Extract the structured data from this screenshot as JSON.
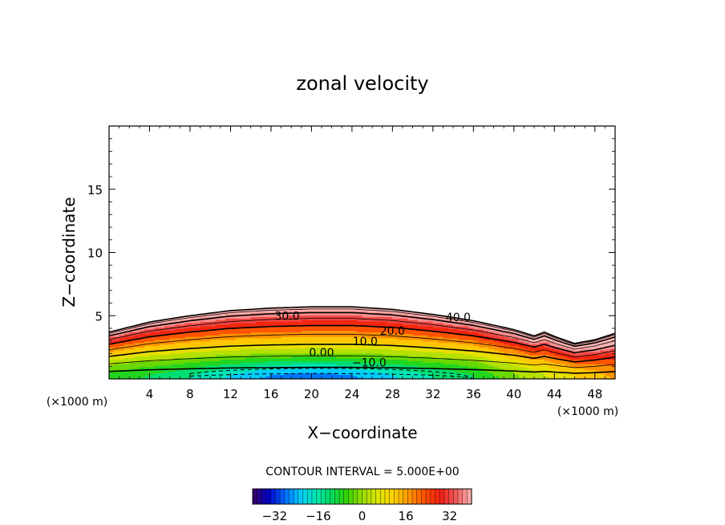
{
  "chart_data": {
    "type": "heatmap",
    "title": "zonal velocity",
    "xlabel": "X−coordinate",
    "ylabel": "Z−coordinate",
    "x_unit_left": "(×1000 m)",
    "x_unit_right": "(×1000 m)",
    "xlim": [
      0,
      50
    ],
    "ylim": [
      0,
      20
    ],
    "x_ticks": [
      4,
      8,
      12,
      16,
      20,
      24,
      28,
      32,
      36,
      40,
      44,
      48
    ],
    "x_tick_labels": [
      "4",
      "8",
      "12",
      "16",
      "20",
      "24",
      "28",
      "32",
      "36",
      "40",
      "44",
      "48"
    ],
    "y_ticks": [
      5,
      10,
      15
    ],
    "y_tick_labels": [
      "5",
      "10",
      "15"
    ],
    "contour_labels": [
      {
        "text": "30.0",
        "x": 17.6,
        "y": 5.0
      },
      {
        "text": "40.0",
        "x": 34.5,
        "y": 4.9
      },
      {
        "text": "20.0",
        "x": 28.0,
        "y": 3.8
      },
      {
        "text": "10.0",
        "x": 25.3,
        "y": 3.0
      },
      {
        "text": "0.00",
        "x": 21.0,
        "y": 2.1
      },
      {
        "text": "−10.0",
        "x": 25.7,
        "y": 1.3
      }
    ],
    "contour_interval_label": "CONTOUR INTERVAL = 5.000E+00",
    "contour_interval": 5.0,
    "colorbar": {
      "range": [
        -40,
        40
      ],
      "ticks": [
        -32,
        -16,
        0,
        16,
        32
      ],
      "tick_labels": [
        "−32",
        "−16",
        "0",
        "16",
        "32"
      ]
    },
    "field_description": {
      "boundary_top_z": [
        [
          0,
          3.7
        ],
        [
          4,
          4.5
        ],
        [
          8,
          5.0
        ],
        [
          12,
          5.4
        ],
        [
          16,
          5.6
        ],
        [
          20,
          5.7
        ],
        [
          24,
          5.7
        ],
        [
          28,
          5.5
        ],
        [
          32,
          5.1
        ],
        [
          36,
          4.6
        ],
        [
          40,
          3.9
        ],
        [
          42,
          3.4
        ],
        [
          43,
          3.7
        ],
        [
          44.2,
          3.3
        ],
        [
          46,
          2.8
        ],
        [
          48,
          3.1
        ],
        [
          50,
          3.6
        ]
      ],
      "core_minimum": {
        "x": 20,
        "z": 0,
        "value": -30
      },
      "jet_maximum": {
        "x": 24,
        "z": 5.2,
        "value": 45
      }
    }
  },
  "colors": {
    "background": "#ffffff",
    "axis": "#000000",
    "scale": [
      "#3a0060",
      "#0000c8",
      "#0064ff",
      "#00c8ff",
      "#00e6b4",
      "#00dc64",
      "#32d200",
      "#96dc00",
      "#dce600",
      "#ffd200",
      "#ff9600",
      "#ff5000",
      "#f01e14",
      "#f05a5a",
      "#ffb4b4"
    ]
  }
}
